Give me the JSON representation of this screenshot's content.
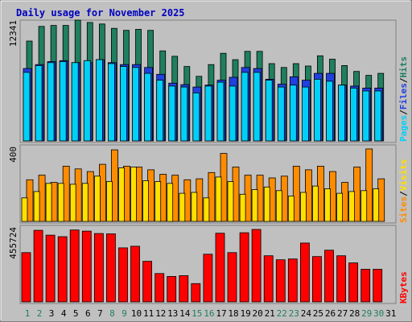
{
  "colors": {
    "background": "#C0C0C0",
    "plot_area": "#C0C0C0",
    "title": "#0000C0",
    "hits": "#1F7F5F",
    "files": "#2040E0",
    "pages": "#00D0F8",
    "visits": "#FF8C00",
    "sites": "#FFE000",
    "kbytes": "#FF0000",
    "weekday_label": "#000000",
    "weekend_label": "#1F7F5F"
  },
  "chart_data": {
    "type": "bar",
    "title": "Daily usage for November 2025",
    "categories": [
      "1",
      "2",
      "3",
      "4",
      "5",
      "6",
      "7",
      "8",
      "9",
      "10",
      "11",
      "12",
      "13",
      "14",
      "15",
      "16",
      "17",
      "18",
      "19",
      "20",
      "21",
      "22",
      "23",
      "24",
      "25",
      "26",
      "27",
      "28",
      "29",
      "30",
      "31"
    ],
    "weekend_days": [
      "1",
      "2",
      "8",
      "9",
      "15",
      "16",
      "22",
      "23",
      "29",
      "30"
    ],
    "panels": [
      {
        "name": "hits-files-pages",
        "ylabel_max": "12341",
        "ylim": [
          0,
          12341
        ],
        "legend": [
          "Pages",
          "/",
          "Files",
          "/",
          "Hits"
        ],
        "series": [
          {
            "name": "Hits",
            "values": [
              10200,
              11700,
              11800,
              11800,
              12341,
              12100,
              11950,
              11500,
              11300,
              11400,
              11300,
              9200,
              8650,
              7600,
              6600,
              7800,
              8950,
              8300,
              9150,
              9150,
              7900,
              7500,
              7900,
              7650,
              8700,
              8350,
              7700,
              7100,
              6700,
              6900,
              0
            ]
          },
          {
            "name": "Files",
            "values": [
              7400,
              7800,
              8100,
              8200,
              8000,
              8000,
              8300,
              8000,
              7800,
              7800,
              7500,
              6800,
              5900,
              5750,
              5500,
              5700,
              6200,
              6500,
              7500,
              7400,
              6300,
              5800,
              6550,
              6200,
              6900,
              6900,
              5700,
              5600,
              5400,
              5400,
              0
            ]
          },
          {
            "name": "Pages",
            "values": [
              7000,
              7700,
              8000,
              8100,
              8000,
              8200,
              8300,
              7900,
              7600,
              7500,
              6900,
              6200,
              5600,
              5500,
              4900,
              5600,
              6000,
              5600,
              7000,
              7000,
              6200,
              5500,
              5700,
              5500,
              6300,
              6100,
              5700,
              5400,
              5100,
              5100,
              0
            ]
          }
        ]
      },
      {
        "name": "visits-sites",
        "ylabel_max": "400",
        "ylim": [
          0,
          400
        ],
        "legend": [
          "Sites",
          "/",
          "Visits"
        ],
        "series": [
          {
            "name": "Visits",
            "values": [
              230,
              255,
              215,
              305,
              290,
              275,
              315,
              395,
              305,
              300,
              285,
              260,
              255,
              230,
              235,
              270,
              375,
              300,
              255,
              255,
              240,
              250,
              305,
              285,
              305,
              275,
              215,
              300,
              400,
              235,
              0
            ]
          },
          {
            "name": "Sites",
            "values": [
              130,
              165,
              210,
              210,
              205,
              210,
              250,
              220,
              295,
              300,
              225,
              220,
              210,
              155,
              160,
              130,
              245,
              220,
              150,
              175,
              190,
              170,
              140,
              160,
              195,
              180,
              155,
              165,
              170,
              180,
              0
            ]
          }
        ]
      },
      {
        "name": "kbytes",
        "ylabel_max": "455724",
        "ylim": [
          0,
          455724
        ],
        "legend": [
          "KBytes"
        ],
        "series": [
          {
            "name": "KBytes",
            "values": [
              310000,
              450000,
              420000,
              410000,
              452000,
              445000,
              430000,
              428000,
              340000,
              350000,
              255000,
              178000,
              160000,
              165000,
              115000,
              300000,
              432000,
              310000,
              435000,
              455724,
              290000,
              265000,
              270000,
              370000,
              285000,
              325000,
              290000,
              245000,
              205000,
              205000,
              0
            ]
          }
        ]
      }
    ]
  }
}
